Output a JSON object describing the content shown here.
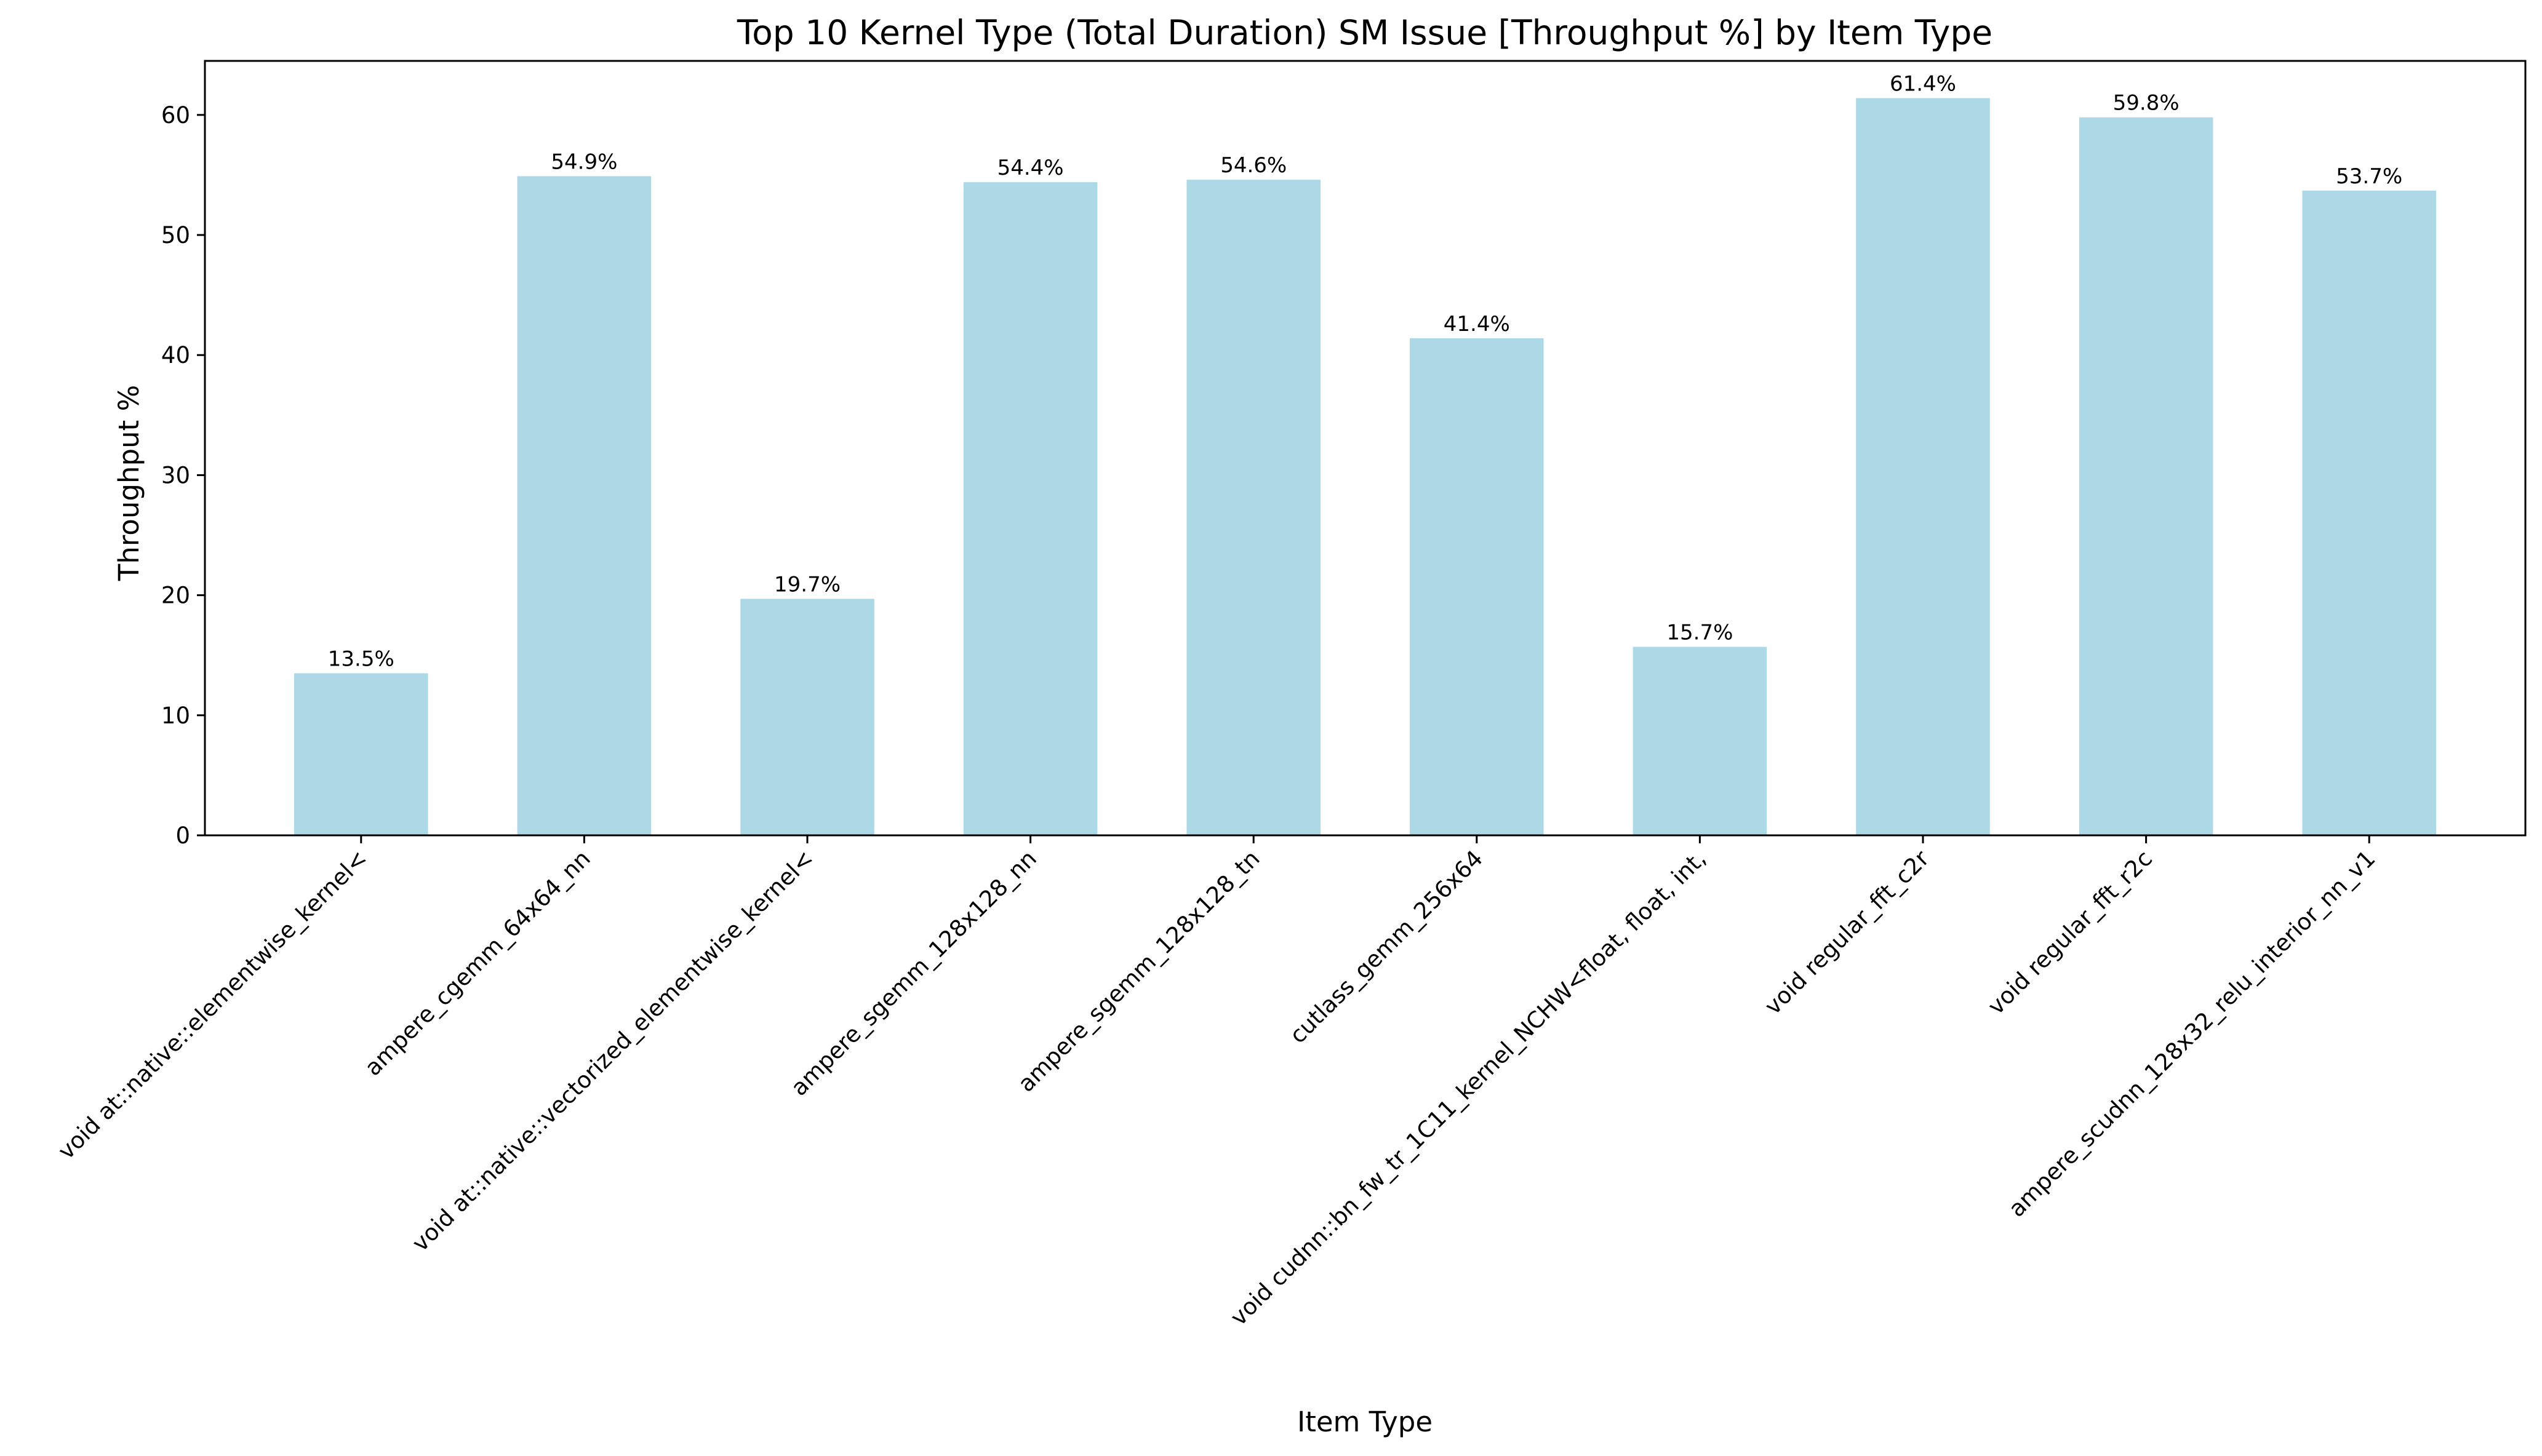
{
  "chart_data": {
    "type": "bar",
    "title": "Top 10 Kernel Type (Total Duration) SM Issue [Throughput %] by Item Type",
    "xlabel": "Item Type",
    "ylabel": "Throughput %",
    "ylim": [
      0,
      64.5
    ],
    "yticks": [
      0,
      10,
      20,
      30,
      40,
      50,
      60
    ],
    "grid": false,
    "bar_color": "#add8e6",
    "categories": [
      "void at::native::elementwise_kernel<",
      "ampere_cgemm_64x64_nn",
      "void at::native::vectorized_elementwise_kernel<",
      "ampere_sgemm_128x128_nn",
      "ampere_sgemm_128x128_tn",
      "cutlass_gemm_256x64",
      "void cudnn::bn_fw_tr_1C11_kernel_NCHW<float, float, int,",
      "void regular_fft_c2r",
      "void regular_fft_r2c",
      "ampere_scudnn_128x32_relu_interior_nn_v1"
    ],
    "values": [
      13.5,
      54.9,
      19.7,
      54.4,
      54.6,
      41.4,
      15.7,
      61.4,
      59.8,
      53.7
    ],
    "data_labels": [
      "13.5%",
      "54.9%",
      "19.7%",
      "54.4%",
      "54.6%",
      "41.4%",
      "15.7%",
      "61.4%",
      "59.8%",
      "53.7%"
    ]
  }
}
